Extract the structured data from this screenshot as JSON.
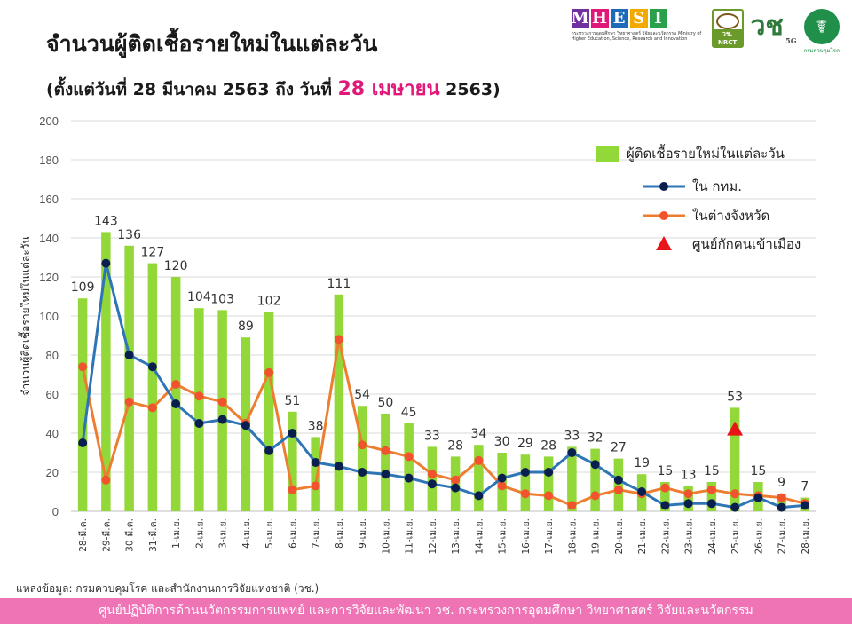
{
  "header": {
    "title": "จำนวนผู้ติดเชื้อรายใหม่ในแต่ละวัน",
    "subtitle_prefix": "(ตั้งแต่วันที่ 28 มีนาคม 2563 ถึง วันที่ ",
    "subtitle_highlight": "28 เมษายน",
    "subtitle_suffix": " 2563)"
  },
  "logos": {
    "mhesi_letters": [
      "M",
      "H",
      "E",
      "S",
      "I"
    ],
    "mhesi_sub": "กระทรวงการอุดมศึกษา วิทยาศาสตร์ วิจัยและนวัตกรรม Ministry of Higher Education, Science, Research and Innovation",
    "nrct_text": "วช. NRCT",
    "logo_5g_text": "วช",
    "logo_5g_sub": "5G",
    "ddc_text": "กรมควบคุมโรค",
    "ddc_symbol": "☤"
  },
  "colors": {
    "bar": "#92d838",
    "bkk_line": "#2e75b6",
    "bkk_marker": "#0b1f4f",
    "prov_line": "#ed7d31",
    "prov_marker": "#f0532d",
    "quarantine_marker": "#e8141a",
    "mhesi_letter_colors": [
      "#7030a0",
      "#e0187a",
      "#1f6ab8",
      "#f2a900",
      "#2aa04a"
    ]
  },
  "chart_data": {
    "type": "bar",
    "title": "จำนวนผู้ติดเชื้อรายใหม่ในแต่ละวัน",
    "ylabel": "จำนวนผู้ติดเชื้อรายใหม่ในแต่ละวัน",
    "xlabel": "",
    "ylim": [
      0,
      200
    ],
    "yticks": [
      0,
      20,
      40,
      60,
      80,
      100,
      120,
      140,
      160,
      180,
      200
    ],
    "grid": true,
    "legend_position": "top-right",
    "categories": [
      "28-มี.ค.",
      "29-มี.ค.",
      "30-มี.ค.",
      "31-มี.ค.",
      "1-เม.ย.",
      "2-เม.ย.",
      "3-เม.ย.",
      "4-เม.ย.",
      "5-เม.ย.",
      "6-เม.ย.",
      "7-เม.ย.",
      "8-เม.ย.",
      "9-เม.ย.",
      "10-เม.ย.",
      "11-เม.ย.",
      "12-เม.ย.",
      "13-เม.ย.",
      "14-เม.ย.",
      "15-เม.ย.",
      "16-เม.ย.",
      "17-เม.ย.",
      "18-เม.ย.",
      "19-เม.ย.",
      "20-เม.ย.",
      "21-เม.ย.",
      "22-เม.ย.",
      "23-เม.ย.",
      "24-เม.ย.",
      "25-เม.ย.",
      "26-เม.ย.",
      "27-เม.ย.",
      "28-เม.ย."
    ],
    "series": [
      {
        "name": "ผู้ติดเชื้อรายใหม่ในแต่ละวัน",
        "type": "bar",
        "values": [
          109,
          143,
          136,
          127,
          120,
          104,
          103,
          89,
          102,
          51,
          38,
          111,
          54,
          50,
          45,
          33,
          28,
          34,
          30,
          29,
          28,
          33,
          32,
          27,
          19,
          15,
          13,
          15,
          53,
          15,
          9,
          7
        ]
      },
      {
        "name": "ใน กทม.",
        "type": "line",
        "values": [
          35,
          127,
          80,
          74,
          55,
          45,
          47,
          44,
          31,
          40,
          25,
          23,
          20,
          19,
          17,
          14,
          12,
          8,
          17,
          20,
          20,
          30,
          24,
          16,
          10,
          3,
          4,
          4,
          2,
          7,
          2,
          3
        ]
      },
      {
        "name": "ในต่างจังหวัด",
        "type": "line",
        "values": [
          74,
          16,
          56,
          53,
          65,
          59,
          56,
          45,
          71,
          11,
          13,
          88,
          34,
          31,
          28,
          19,
          16,
          26,
          13,
          9,
          8,
          3,
          8,
          11,
          9,
          12,
          9,
          11,
          9,
          8,
          7,
          4
        ]
      },
      {
        "name": "ศูนย์กักคนเข้าเมือง",
        "type": "marker",
        "category": "25-เม.ย.",
        "value": 42
      }
    ]
  },
  "source_text": "แหล่งข้อมูล: กรมควบคุมโรค และสำนักงานการวิจัยแห่งชาติ (วช.)",
  "footer_text": "ศูนย์ปฏิบัติการด้านนวัตกรรมการแพทย์ และการวิจัยและพัฒนา วช. กระทรวงการอุดมศึกษา วิทยาศาสตร์ วิจัยและนวัตกรรม"
}
